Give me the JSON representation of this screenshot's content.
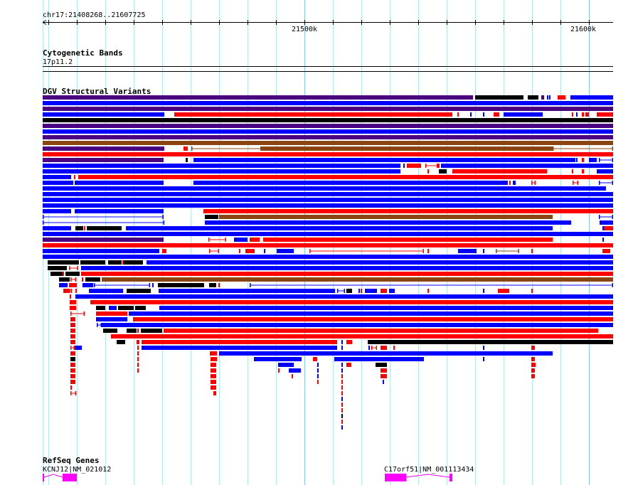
{
  "ruler": {
    "location": "chr17:21408268..21607725",
    "view_start_kb": 21408,
    "view_end_kb": 21608.5,
    "tick_interval_kb": 10,
    "major_labels": [
      {
        "kb": 21500,
        "label": "21500k"
      },
      {
        "kb": 21600,
        "label": "21600k"
      }
    ]
  },
  "cytoband": {
    "title": "Cytogenetic Bands",
    "band": "17p11.2"
  },
  "dgv": {
    "title": "DGV Structural Variants"
  },
  "refseq": {
    "title": "RefSeq Genes",
    "genes": [
      {
        "label": "KCNJ12|NM_021012",
        "start": 21408,
        "end": 21420,
        "exons": [
          [
            21408,
            21408.5
          ],
          [
            21415,
            21420
          ]
        ]
      },
      {
        "label": "C17orf51|NM_001113434",
        "start": 21528.25,
        "end": 21552,
        "exons": [
          [
            21528.25,
            21535.75
          ],
          [
            21551,
            21552
          ]
        ]
      }
    ]
  },
  "colors": {
    "B": "#0000ff",
    "R": "#ff0000",
    "K": "#000000",
    "P": "#4b0082",
    "N": "#8b4513",
    "gene": "#ff00ff",
    "grid": "#b4e8ef",
    "grid_major": "#8cc8e6"
  },
  "variant_rows": [
    [
      [
        21408,
        21559.25,
        "P"
      ],
      [
        21560,
        21577,
        "K"
      ],
      [
        21578.5,
        21582.25,
        "K"
      ],
      [
        21583.25,
        21584.25,
        "P"
      ],
      [
        21585.25,
        21585.5,
        "B"
      ],
      [
        21586,
        21586.5,
        "B"
      ],
      [
        21589,
        21591.75,
        "R"
      ],
      [
        21593.5,
        21608.5,
        "B"
      ]
    ],
    [
      [
        21408,
        21608.5,
        "B"
      ]
    ],
    [
      [
        21408,
        21608.5,
        "P"
      ]
    ],
    [
      [
        21408,
        21450.75,
        "B"
      ],
      [
        21454.25,
        21552,
        "R"
      ],
      [
        21553.75,
        21554.25,
        "R"
      ],
      [
        21558.25,
        21558.75,
        "B"
      ],
      [
        21562.75,
        21563,
        "B"
      ],
      [
        21566.5,
        21568.5,
        "R"
      ],
      [
        21570,
        21583.75,
        "B"
      ],
      [
        21594,
        21594.5,
        "R"
      ],
      [
        21595.5,
        21596,
        "B"
      ],
      [
        21597.5,
        21598.25,
        "R"
      ],
      [
        21598.75,
        21600,
        "R"
      ],
      [
        21602.75,
        21608.5,
        "R"
      ]
    ],
    [
      [
        21408,
        21608.5,
        "K"
      ]
    ],
    [
      [
        21408,
        21608.5,
        "P"
      ]
    ],
    [
      [
        21408,
        21608.5,
        "B"
      ]
    ],
    [
      [
        21408,
        21608.5,
        "P"
      ]
    ],
    [
      [
        21408,
        21608.5,
        "N"
      ]
    ],
    [
      [
        21408,
        21450.75,
        "P"
      ],
      [
        21457.5,
        21459,
        "R"
      ],
      [
        21460.25,
        21587.25,
        "N",
        "line"
      ],
      [
        21484.5,
        21587.25,
        "N"
      ],
      [
        21587.25,
        21608.5,
        "N",
        "line"
      ]
    ],
    [
      [
        21408,
        21608.5,
        "R"
      ]
    ],
    [
      [
        21408,
        21450.5,
        "P"
      ],
      [
        21458.25,
        21459,
        "K"
      ],
      [
        21461,
        21595.25,
        "B"
      ],
      [
        21595.5,
        21596,
        "B"
      ],
      [
        21597.5,
        21598.25,
        "R"
      ],
      [
        21600,
        21602.75,
        "B"
      ],
      [
        21603.5,
        21608.5,
        "B",
        "line"
      ]
    ],
    [
      [
        21408,
        21533.75,
        "B"
      ],
      [
        21534.75,
        21535.25,
        "B"
      ],
      [
        21536,
        21541,
        "R"
      ],
      [
        21542.5,
        21547.5,
        "R",
        "line"
      ],
      [
        21546.5,
        21547.5,
        "R"
      ],
      [
        21548,
        21608.5,
        "B"
      ]
    ],
    [
      [
        21408,
        21533.75,
        "B"
      ],
      [
        21543.25,
        21543.75,
        "R"
      ],
      [
        21547.25,
        21550,
        "K"
      ],
      [
        21552,
        21585.25,
        "R"
      ],
      [
        21594,
        21594.5,
        "R"
      ],
      [
        21597.5,
        21598.25,
        "R"
      ],
      [
        21602.75,
        21608.5,
        "B"
      ]
    ],
    [
      [
        21408,
        21418,
        "B"
      ],
      [
        21419,
        21419.5,
        "R"
      ],
      [
        21420.5,
        21608.5,
        "R"
      ]
    ],
    [
      [
        21408,
        21418.75,
        "B"
      ],
      [
        21419.25,
        21450.5,
        "B"
      ],
      [
        21461,
        21571.5,
        "B"
      ],
      [
        21572,
        21572.5,
        "R"
      ],
      [
        21573.25,
        21574.25,
        "B"
      ],
      [
        21579.75,
        21581.25,
        "R",
        "line"
      ],
      [
        21594.25,
        21596.25,
        "R",
        "line"
      ],
      [
        21603.5,
        21608.5,
        "B",
        "line"
      ]
    ],
    [
      [
        21408,
        21606,
        "B"
      ]
    ],
    [
      [
        21408,
        21608.5,
        "B"
      ]
    ],
    [
      [
        21408,
        21608.5,
        "B"
      ]
    ],
    [
      [
        21408,
        21608.5,
        "B"
      ]
    ],
    [
      [
        21408,
        21418,
        "B"
      ],
      [
        21419.25,
        21450.5,
        "B"
      ],
      [
        21464.5,
        21608.5,
        "R"
      ]
    ],
    [
      [
        21408,
        21450.5,
        "B",
        "line"
      ],
      [
        21465,
        21469.75,
        "K"
      ],
      [
        21470,
        21587.25,
        "N"
      ],
      [
        21603.5,
        21608.5,
        "B",
        "line"
      ]
    ],
    [
      [
        21408,
        21450.75,
        "B",
        "line"
      ],
      [
        21465,
        21593.75,
        "B"
      ],
      [
        21603.75,
        21608.5,
        "B"
      ]
    ],
    [
      [
        21408,
        21418,
        "B"
      ],
      [
        21419.5,
        21422.25,
        "K"
      ],
      [
        21422.5,
        21422.75,
        "R"
      ],
      [
        21423.5,
        21435.75,
        "K"
      ],
      [
        21437.25,
        21587.25,
        "B"
      ],
      [
        21604.75,
        21605.25,
        "B"
      ],
      [
        21605.25,
        21608.5,
        "R"
      ]
    ],
    [
      [
        21408,
        21608.5,
        "B"
      ]
    ],
    [
      [
        21408,
        21450.5,
        "P"
      ],
      [
        21466.25,
        21472.5,
        "R",
        "line"
      ],
      [
        21475.25,
        21480,
        "B"
      ],
      [
        21480.75,
        21484.25,
        "R"
      ],
      [
        21485.5,
        21587.25,
        "R"
      ],
      [
        21604.75,
        21605.25,
        "B"
      ]
    ],
    [
      [
        21408,
        21608.5,
        "R"
      ]
    ],
    [
      [
        21408,
        21449,
        "B"
      ],
      [
        21450,
        21451.5,
        "R"
      ],
      [
        21466.5,
        21470,
        "R",
        "line"
      ],
      [
        21477,
        21477.5,
        "R"
      ],
      [
        21479.25,
        21482.5,
        "R"
      ],
      [
        21485.75,
        21486,
        "B"
      ],
      [
        21490.25,
        21496.25,
        "B"
      ],
      [
        21501.75,
        21542,
        "R",
        "line"
      ],
      [
        21543.25,
        21543.75,
        "R"
      ],
      [
        21554,
        21560.5,
        "B"
      ],
      [
        21562.75,
        21563,
        "B"
      ],
      [
        21567.25,
        21575.5,
        "N",
        "line"
      ],
      [
        21579.75,
        21580.25,
        "R"
      ],
      [
        21604.75,
        21607.5,
        "R"
      ]
    ],
    [
      [
        21408,
        21608.5,
        "B"
      ]
    ],
    [
      [
        21409.75,
        21420.75,
        "K"
      ],
      [
        21421.25,
        21430,
        "K"
      ],
      [
        21431,
        21435.75,
        "K"
      ],
      [
        21436,
        21436.25,
        "R"
      ],
      [
        21436.25,
        21443.25,
        "K"
      ],
      [
        21444.5,
        21608.5,
        "B"
      ]
    ],
    [
      [
        21409.75,
        21416.5,
        "K"
      ],
      [
        21417.25,
        21420.5,
        "R",
        "line"
      ],
      [
        21421.5,
        21608.5,
        "B"
      ]
    ],
    [
      [
        21410.75,
        21415,
        "K"
      ],
      [
        21415,
        21415.5,
        "R"
      ],
      [
        21416,
        21421,
        "K"
      ],
      [
        21421.5,
        21608.5,
        "R"
      ]
    ],
    [
      [
        21413.75,
        21417.5,
        "K"
      ],
      [
        21417.75,
        21419.75,
        "R",
        "line"
      ],
      [
        21421.75,
        21422.25,
        "R"
      ],
      [
        21423,
        21428.25,
        "K"
      ],
      [
        21428.75,
        21608.5,
        "N"
      ]
    ],
    [
      [
        21413.75,
        21416.75,
        "B"
      ],
      [
        21417.25,
        21420,
        "R"
      ],
      [
        21422,
        21425.75,
        "B"
      ],
      [
        21426,
        21445.75,
        "B",
        "line"
      ],
      [
        21446.5,
        21446.75,
        "B"
      ],
      [
        21448.5,
        21464.75,
        "K"
      ],
      [
        21466.5,
        21469,
        "K"
      ],
      [
        21469.75,
        21470.25,
        "R"
      ],
      [
        21480.75,
        21608.5,
        "B",
        "line"
      ]
    ],
    [
      [
        21415.25,
        21417.25,
        "R"
      ],
      [
        21417.25,
        21418.25,
        "R",
        "line"
      ],
      [
        21419.5,
        21420,
        "R"
      ],
      [
        21424.25,
        21436.25,
        "B"
      ],
      [
        21437.5,
        21446,
        "K"
      ],
      [
        21448.75,
        21510.75,
        "B"
      ],
      [
        21511.5,
        21514.25,
        "B",
        "line"
      ],
      [
        21514.75,
        21516.75,
        "K"
      ],
      [
        21519,
        21519.5,
        "B"
      ],
      [
        21519.75,
        21520.25,
        "R"
      ],
      [
        21521.25,
        21525.5,
        "B"
      ],
      [
        21526.75,
        21529,
        "R"
      ],
      [
        21529.75,
        21531.75,
        "B"
      ],
      [
        21543.25,
        21543.75,
        "R"
      ],
      [
        21562.75,
        21563,
        "B"
      ],
      [
        21568,
        21572,
        "R"
      ],
      [
        21579.75,
        21580.25,
        "R"
      ]
    ],
    [
      [
        21417.5,
        21418,
        "R"
      ],
      [
        21419.5,
        21608.5,
        "B"
      ]
    ],
    [
      [
        21417.5,
        21419.75,
        "R"
      ],
      [
        21424.75,
        21608.5,
        "R"
      ]
    ],
    [
      [
        21417.5,
        21419.75,
        "R"
      ],
      [
        21426.75,
        21430,
        "K"
      ],
      [
        21431.25,
        21434,
        "B"
      ],
      [
        21434.5,
        21440,
        "K"
      ],
      [
        21440.5,
        21444.25,
        "K"
      ],
      [
        21449,
        21608.5,
        "B"
      ]
    ],
    [
      [
        21417.75,
        21422.75,
        "R",
        "line"
      ],
      [
        21426.75,
        21437.75,
        "R"
      ],
      [
        21438.25,
        21608.5,
        "B"
      ]
    ],
    [
      [
        21417.75,
        21419.5,
        "R"
      ],
      [
        21426.75,
        21437.75,
        "B"
      ],
      [
        21439.75,
        21608.5,
        "R"
      ]
    ],
    [
      [
        21417.75,
        21419.5,
        "R"
      ],
      [
        21427,
        21428.75,
        "B",
        "line"
      ],
      [
        21428.75,
        21608.5,
        "B"
      ]
    ],
    [
      [
        21417.75,
        21419.5,
        "R"
      ],
      [
        21429.25,
        21434.25,
        "K"
      ],
      [
        21437.5,
        21441,
        "K"
      ],
      [
        21441.25,
        21441.5,
        "R"
      ],
      [
        21442.5,
        21450,
        "K"
      ],
      [
        21450.5,
        21603.25,
        "R"
      ]
    ],
    [
      [
        21417.75,
        21419.5,
        "R"
      ],
      [
        21432,
        21608.5,
        "R"
      ]
    ],
    [
      [
        21417.75,
        21419.5,
        "R"
      ],
      [
        21434,
        21437,
        "K"
      ],
      [
        21441,
        21442,
        "R"
      ],
      [
        21442.75,
        21511.5,
        "R"
      ],
      [
        21513,
        21513.5,
        "B"
      ],
      [
        21514.75,
        21516.75,
        "R"
      ],
      [
        21522.25,
        21608.5,
        "K"
      ]
    ],
    [
      [
        21417.75,
        21419.25,
        "R",
        "line"
      ],
      [
        21419.25,
        21421.75,
        "B"
      ],
      [
        21441.25,
        21441.5,
        "R"
      ],
      [
        21442.75,
        21511.5,
        "B"
      ],
      [
        21513,
        21513.5,
        "B"
      ],
      [
        21522.5,
        21523,
        "B"
      ],
      [
        21523.5,
        21525.5,
        "R",
        "line"
      ],
      [
        21526.75,
        21529,
        "R"
      ],
      [
        21531.25,
        21531.75,
        "R"
      ],
      [
        21562.75,
        21563.25,
        "B"
      ],
      [
        21579.75,
        21581,
        "R"
      ]
    ],
    [
      [
        21417.75,
        21419.5,
        "R"
      ],
      [
        21441.25,
        21441.5,
        "R"
      ],
      [
        21466.75,
        21469.25,
        "R"
      ],
      [
        21470,
        21587.25,
        "B"
      ]
    ],
    [
      [
        21417.75,
        21419.5,
        "K"
      ],
      [
        21441.25,
        21441.5,
        "R"
      ],
      [
        21467,
        21469.25,
        "R"
      ],
      [
        21482.25,
        21499,
        "B"
      ],
      [
        21503,
        21504.5,
        "R"
      ],
      [
        21510.5,
        21542,
        "B"
      ],
      [
        21562.75,
        21563,
        "B"
      ],
      [
        21579.75,
        21581,
        "R"
      ]
    ],
    [
      [
        21417.75,
        21419.5,
        "R"
      ],
      [
        21441.25,
        21441.5,
        "R"
      ],
      [
        21467,
        21469,
        "R"
      ],
      [
        21490.75,
        21496.25,
        "B"
      ],
      [
        21504.5,
        21505,
        "B"
      ],
      [
        21513,
        21513.5,
        "B"
      ],
      [
        21514.75,
        21516.5,
        "R"
      ],
      [
        21525,
        21529,
        "K"
      ],
      [
        21579.75,
        21581.25,
        "R"
      ]
    ],
    [
      [
        21417.75,
        21419.5,
        "R"
      ],
      [
        21441.25,
        21441.5,
        "R"
      ],
      [
        21467,
        21469,
        "R"
      ],
      [
        21490.75,
        21491,
        "R"
      ],
      [
        21494.5,
        21498.75,
        "B"
      ],
      [
        21504.5,
        21505,
        "B"
      ],
      [
        21513,
        21513.5,
        "B"
      ],
      [
        21526.75,
        21529,
        "R"
      ],
      [
        21579.75,
        21581,
        "R"
      ]
    ],
    [
      [
        21417.75,
        21419.5,
        "R"
      ],
      [
        21467,
        21469,
        "R"
      ],
      [
        21495.5,
        21496,
        "R"
      ],
      [
        21504.5,
        21505,
        "B"
      ],
      [
        21513,
        21513.5,
        "R"
      ],
      [
        21526.75,
        21529,
        "R"
      ],
      [
        21579.75,
        21581,
        "R"
      ]
    ],
    [
      [
        21417.75,
        21419.5,
        "R"
      ],
      [
        21467,
        21469,
        "R"
      ],
      [
        21504.5,
        21505,
        "R"
      ],
      [
        21513,
        21513.5,
        "R"
      ],
      [
        21527.5,
        21527.75,
        "B"
      ]
    ],
    [
      [
        21417.75,
        21418.25,
        "R"
      ],
      [
        21467,
        21469,
        "R"
      ],
      [
        21513,
        21513.5,
        "R"
      ]
    ],
    [
      [
        21417.75,
        21419.75,
        "R",
        "line"
      ],
      [
        21468,
        21469,
        "R"
      ],
      [
        21513,
        21513.5,
        "R"
      ]
    ],
    [
      [
        21513,
        21513.5,
        "B"
      ]
    ],
    [
      [
        21513,
        21513.5,
        "R"
      ]
    ],
    [
      [
        21513,
        21513.5,
        "R"
      ]
    ],
    [
      [
        21513,
        21513.5,
        "K"
      ]
    ],
    [
      [
        21513,
        21513.5,
        "R"
      ]
    ],
    [
      [
        21513,
        21513.5,
        "B"
      ]
    ]
  ]
}
